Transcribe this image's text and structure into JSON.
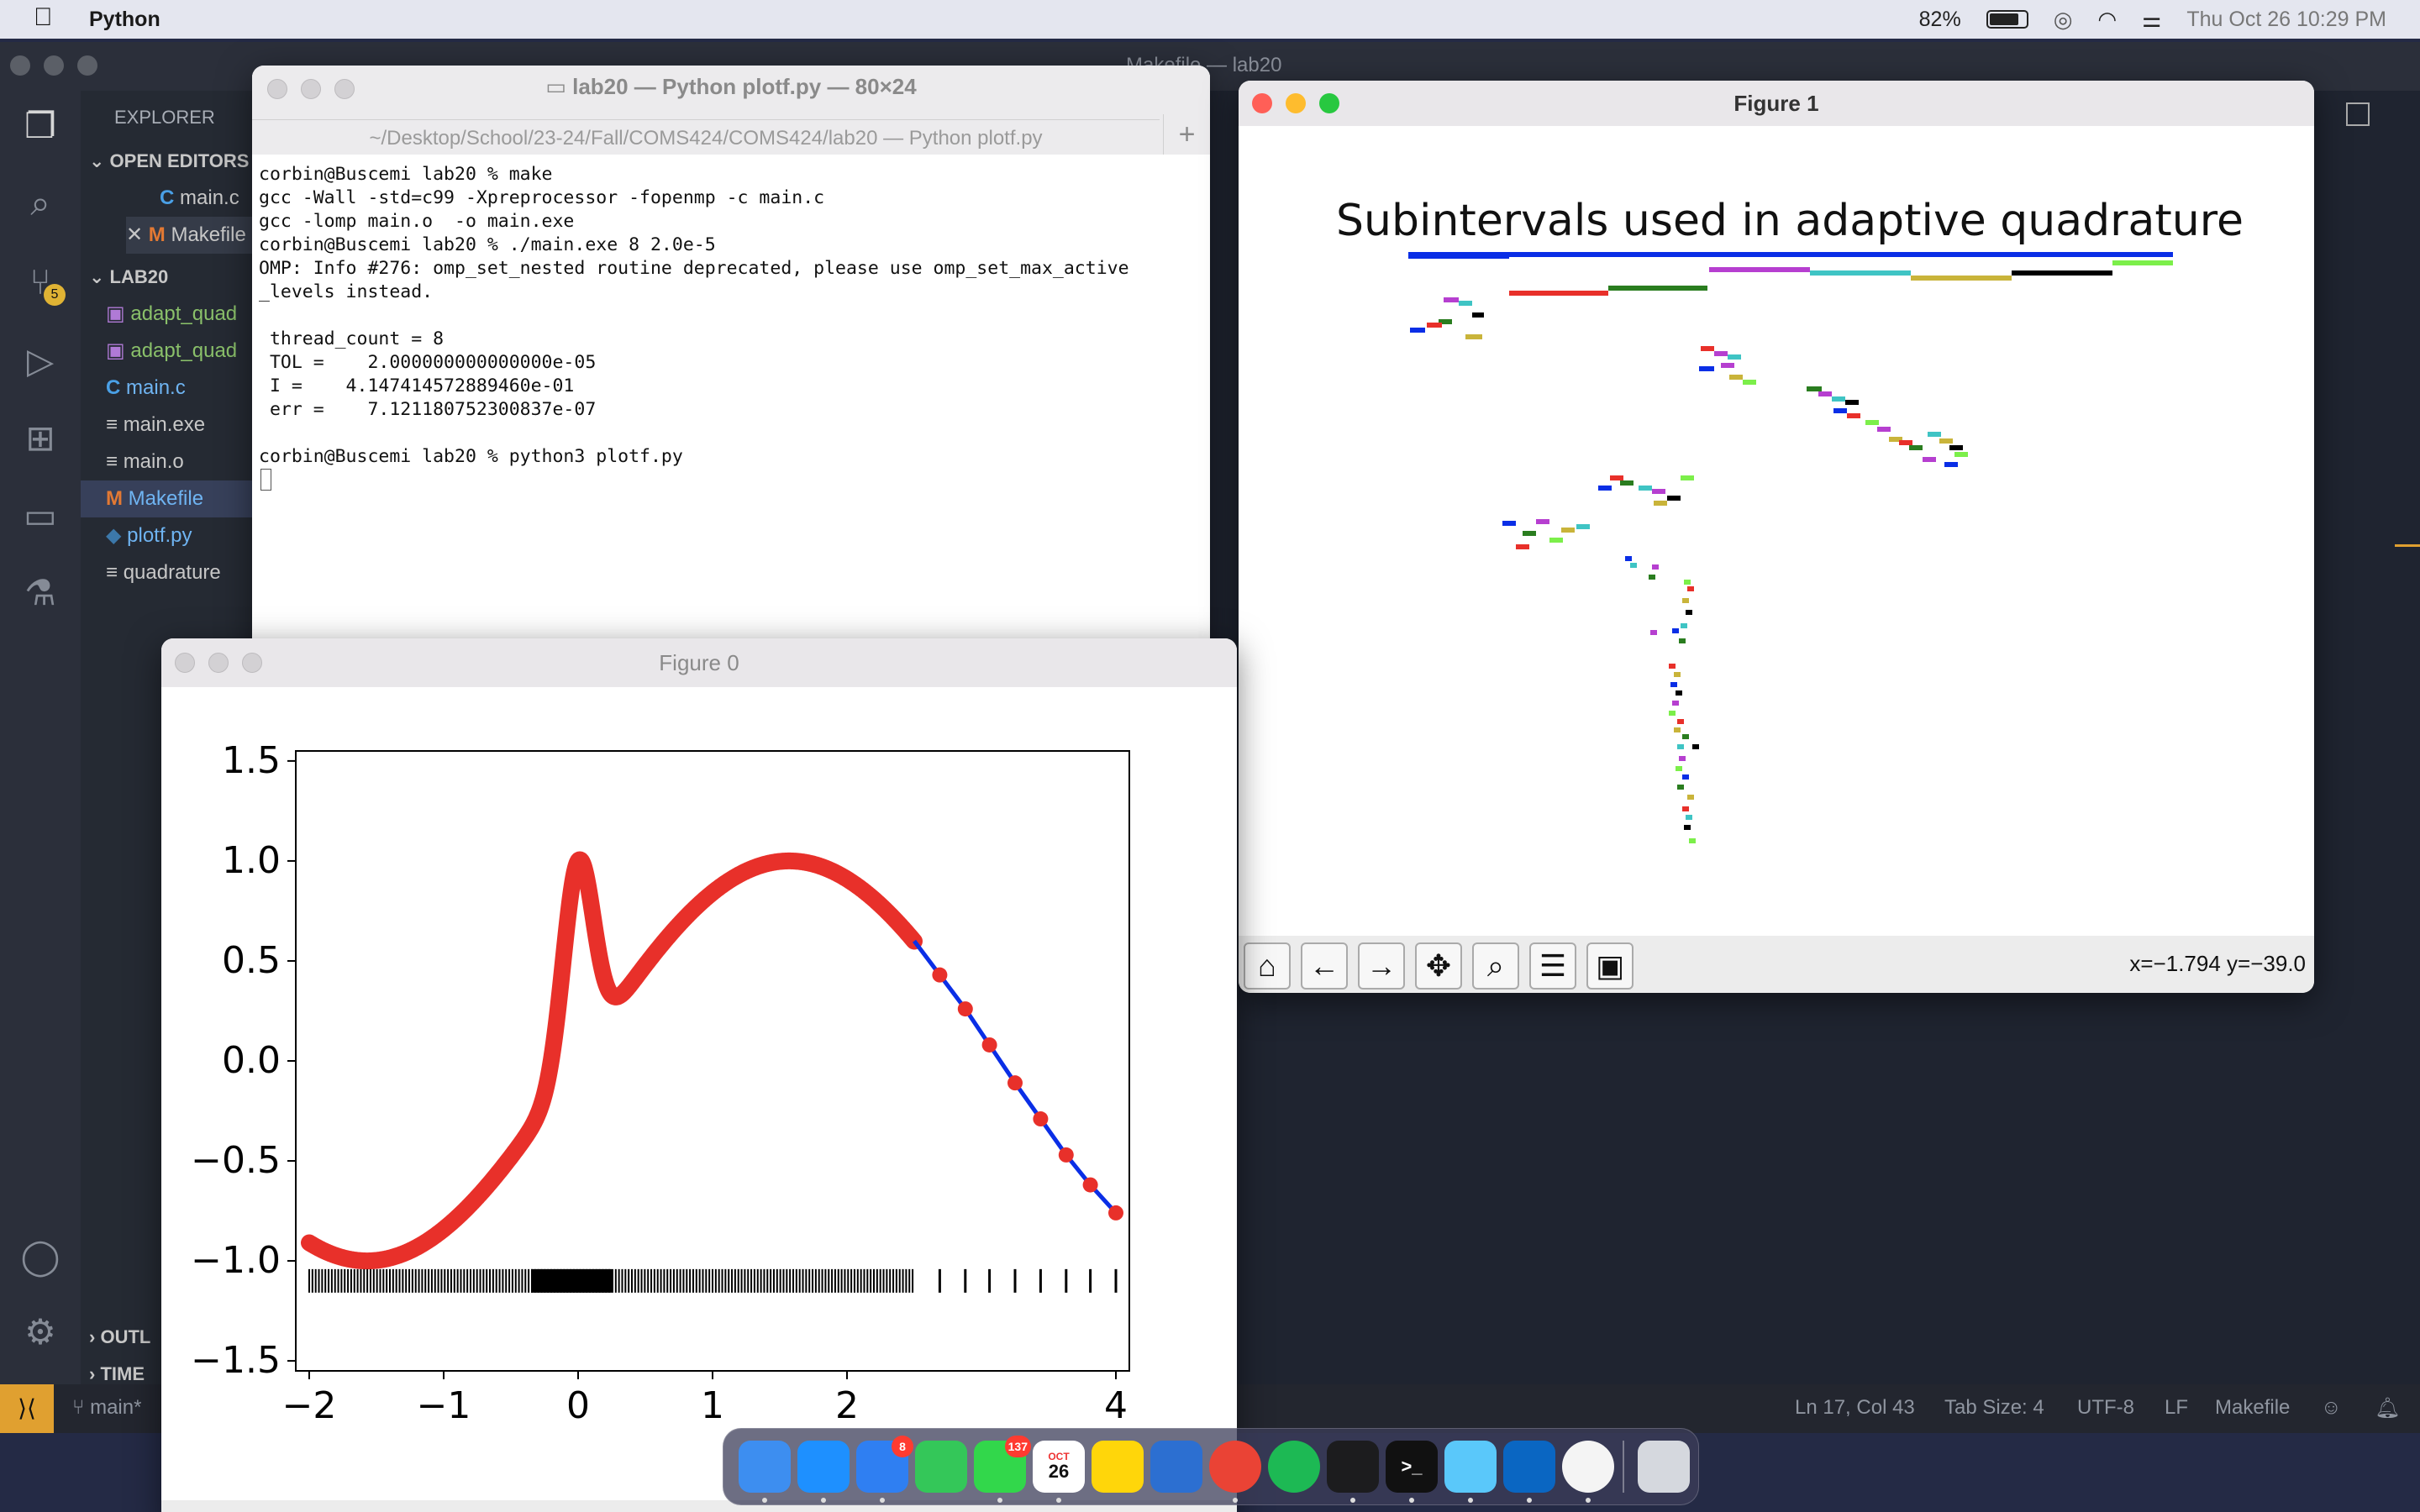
{
  "menubar": {
    "app_name": "Python",
    "battery_percent": "82%",
    "battery_level": 0.82,
    "datetime": "Thu Oct 26  10:29 PM",
    "icons": [
      "apple-icon",
      "battery-icon",
      "airdrop-icon",
      "wifi-icon",
      "control-center-icon"
    ]
  },
  "vscode": {
    "window_title": "Makefile — lab20",
    "explorer_title": "EXPLORER",
    "open_editors_label": "OPEN EDITORS",
    "open_editors": [
      {
        "icon": "C",
        "name": "main.c"
      },
      {
        "icon": "M",
        "name": "Makefile"
      }
    ],
    "folder_label": "LAB20",
    "files": [
      {
        "icon": "img",
        "name": "adapt_quad"
      },
      {
        "icon": "img",
        "name": "adapt_quad"
      },
      {
        "icon": "C",
        "name": "main.c"
      },
      {
        "icon": "≡",
        "name": "main.exe"
      },
      {
        "icon": "≡",
        "name": "main.o"
      },
      {
        "icon": "M",
        "name": "Makefile"
      },
      {
        "icon": "py",
        "name": "plotf.py"
      },
      {
        "icon": "≡",
        "name": "quadrature"
      }
    ],
    "outline_label": "OUTL",
    "timeline_label": "TIME",
    "scm_badge": "5",
    "status": {
      "branch": "main*",
      "position": "Ln 17, Col 43",
      "tab_size": "Tab Size: 4",
      "encoding": "UTF-8",
      "eol": "LF",
      "language": "Makefile"
    }
  },
  "terminal": {
    "title": "lab20 — Python plotf.py — 80×24",
    "subtitle": "~/Desktop/School/23-24/Fall/COMS424/COMS424/lab20 — Python plotf.py",
    "lines": [
      "corbin@Buscemi lab20 % make",
      "gcc -Wall -std=c99 -Xpreprocessor -fopenmp -c main.c",
      "gcc -lomp main.o  -o main.exe",
      "corbin@Buscemi lab20 % ./main.exe 8 2.0e-5",
      "OMP: Info #276: omp_set_nested routine deprecated, please use omp_set_max_active",
      "_levels instead.",
      "",
      " thread_count = 8",
      " TOL =    2.000000000000000e-05",
      " I =    4.147414572889460e-01",
      " err =    7.121180752300837e-07",
      "",
      "corbin@Buscemi lab20 % python3 plotf.py"
    ]
  },
  "figure1": {
    "title": "Figure 1",
    "status": "x=−1.794 y=−39.0",
    "toolbar": [
      "home-icon",
      "back-icon",
      "forward-icon",
      "pan-icon",
      "zoom-icon",
      "configure-icon",
      "save-icon"
    ]
  },
  "figure0": {
    "title": "Figure 0"
  },
  "chart_data": [
    {
      "type": "line",
      "title": "",
      "xlabel": "",
      "ylabel": "",
      "xlim": [
        -2.1,
        4.1
      ],
      "ylim": [
        -1.55,
        1.55
      ],
      "xticks": [
        "−2",
        "−1",
        "0",
        "1",
        "2",
        "4"
      ],
      "yticks": [
        "1.5",
        "1.0",
        "0.5",
        "0.0",
        "−0.5",
        "−1.0",
        "−1.5"
      ],
      "xtick_values": [
        -2,
        -1,
        0,
        1,
        2,
        4
      ],
      "ytick_values": [
        1.5,
        1.0,
        0.5,
        0.0,
        -0.5,
        -1.0,
        -1.5
      ],
      "series": [
        {
          "function": "sin(x) + exp(-40*x^2) on [-2, 4]",
          "color": "#0a2ee6",
          "x": [
            -2.0,
            -1.5,
            -1.0,
            -0.5,
            -0.25,
            -0.1,
            0.0,
            0.1,
            0.2,
            0.5,
            1.0,
            1.5,
            2.0,
            2.5,
            2.69,
            2.88,
            3.06,
            3.25,
            3.44,
            3.63,
            3.81,
            4.0
          ],
          "y": [
            -0.91,
            -1.0,
            -0.84,
            -0.48,
            -0.16,
            0.57,
            1.0,
            0.76,
            0.4,
            0.48,
            0.84,
            1.0,
            0.91,
            0.6,
            0.43,
            0.26,
            0.08,
            -0.11,
            -0.29,
            -0.47,
            -0.62,
            -0.76
          ]
        },
        {
          "name": "",
          "marker": "red circles (quadrature points)",
          "color": "#e8302a",
          "x": [
            2.69,
            2.88,
            3.06,
            3.25,
            3.44,
            3.63,
            3.81,
            4.0
          ],
          "y": [
            0.43,
            0.26,
            0.08,
            -0.11,
            -0.29,
            -0.47,
            -0.62,
            -0.76
          ]
        }
      ],
      "rug": {
        "y": -1.1,
        "dense_range": [
          -2.0,
          2.5
        ],
        "densest_range": [
          -0.35,
          0.25
        ],
        "sparse_points": [
          2.69,
          2.88,
          3.06,
          3.25,
          3.44,
          3.63,
          3.81,
          4.0
        ]
      }
    },
    {
      "type": "tree",
      "title": "Subintervals used in adaptive quadrature",
      "colors": [
        "#0a2ee6",
        "#e8302a",
        "#2a7d1f",
        "#b63fd0",
        "#3fc4c4",
        "#c9b43a",
        "#000000",
        "#7cef4a"
      ],
      "levels_described": "binary subdivision tree of intervals; each depth drawn lower and narrower"
    }
  ],
  "dock": {
    "items": [
      {
        "name": "finder-icon",
        "color": "#3d8ef0",
        "label": ""
      },
      {
        "name": "safari-icon",
        "color": "#1e90ff",
        "label": ""
      },
      {
        "name": "mail-icon",
        "color": "#2f7ff2",
        "label": "",
        "badge": "8"
      },
      {
        "name": "facetime-icon",
        "color": "#34c759",
        "label": ""
      },
      {
        "name": "messages-icon",
        "color": "#32d74b",
        "label": "",
        "badge": "137"
      },
      {
        "name": "calendar-icon",
        "color": "#ffffff",
        "label": "26",
        "sublabel": "OCT"
      },
      {
        "name": "notes-icon",
        "color": "#ffd60a",
        "label": ""
      },
      {
        "name": "xcode-icon",
        "color": "#2c6fd1",
        "label": ""
      },
      {
        "name": "chrome-icon",
        "color": "#ea4335",
        "label": ""
      },
      {
        "name": "spotify-icon",
        "color": "#1db954",
        "label": ""
      },
      {
        "name": "activity-monitor-icon",
        "color": "#1c1c1e",
        "label": ""
      },
      {
        "name": "terminal-icon",
        "color": "#111111",
        "label": ">_"
      },
      {
        "name": "maps-icon",
        "color": "#5ac8fa",
        "label": ""
      },
      {
        "name": "vscode-icon",
        "color": "#0a66c2",
        "label": ""
      },
      {
        "name": "pinwheel-icon",
        "color": "#f4f4f4",
        "label": ""
      },
      {
        "name": "trash-icon",
        "color": "#d5d8de",
        "label": ""
      }
    ]
  }
}
